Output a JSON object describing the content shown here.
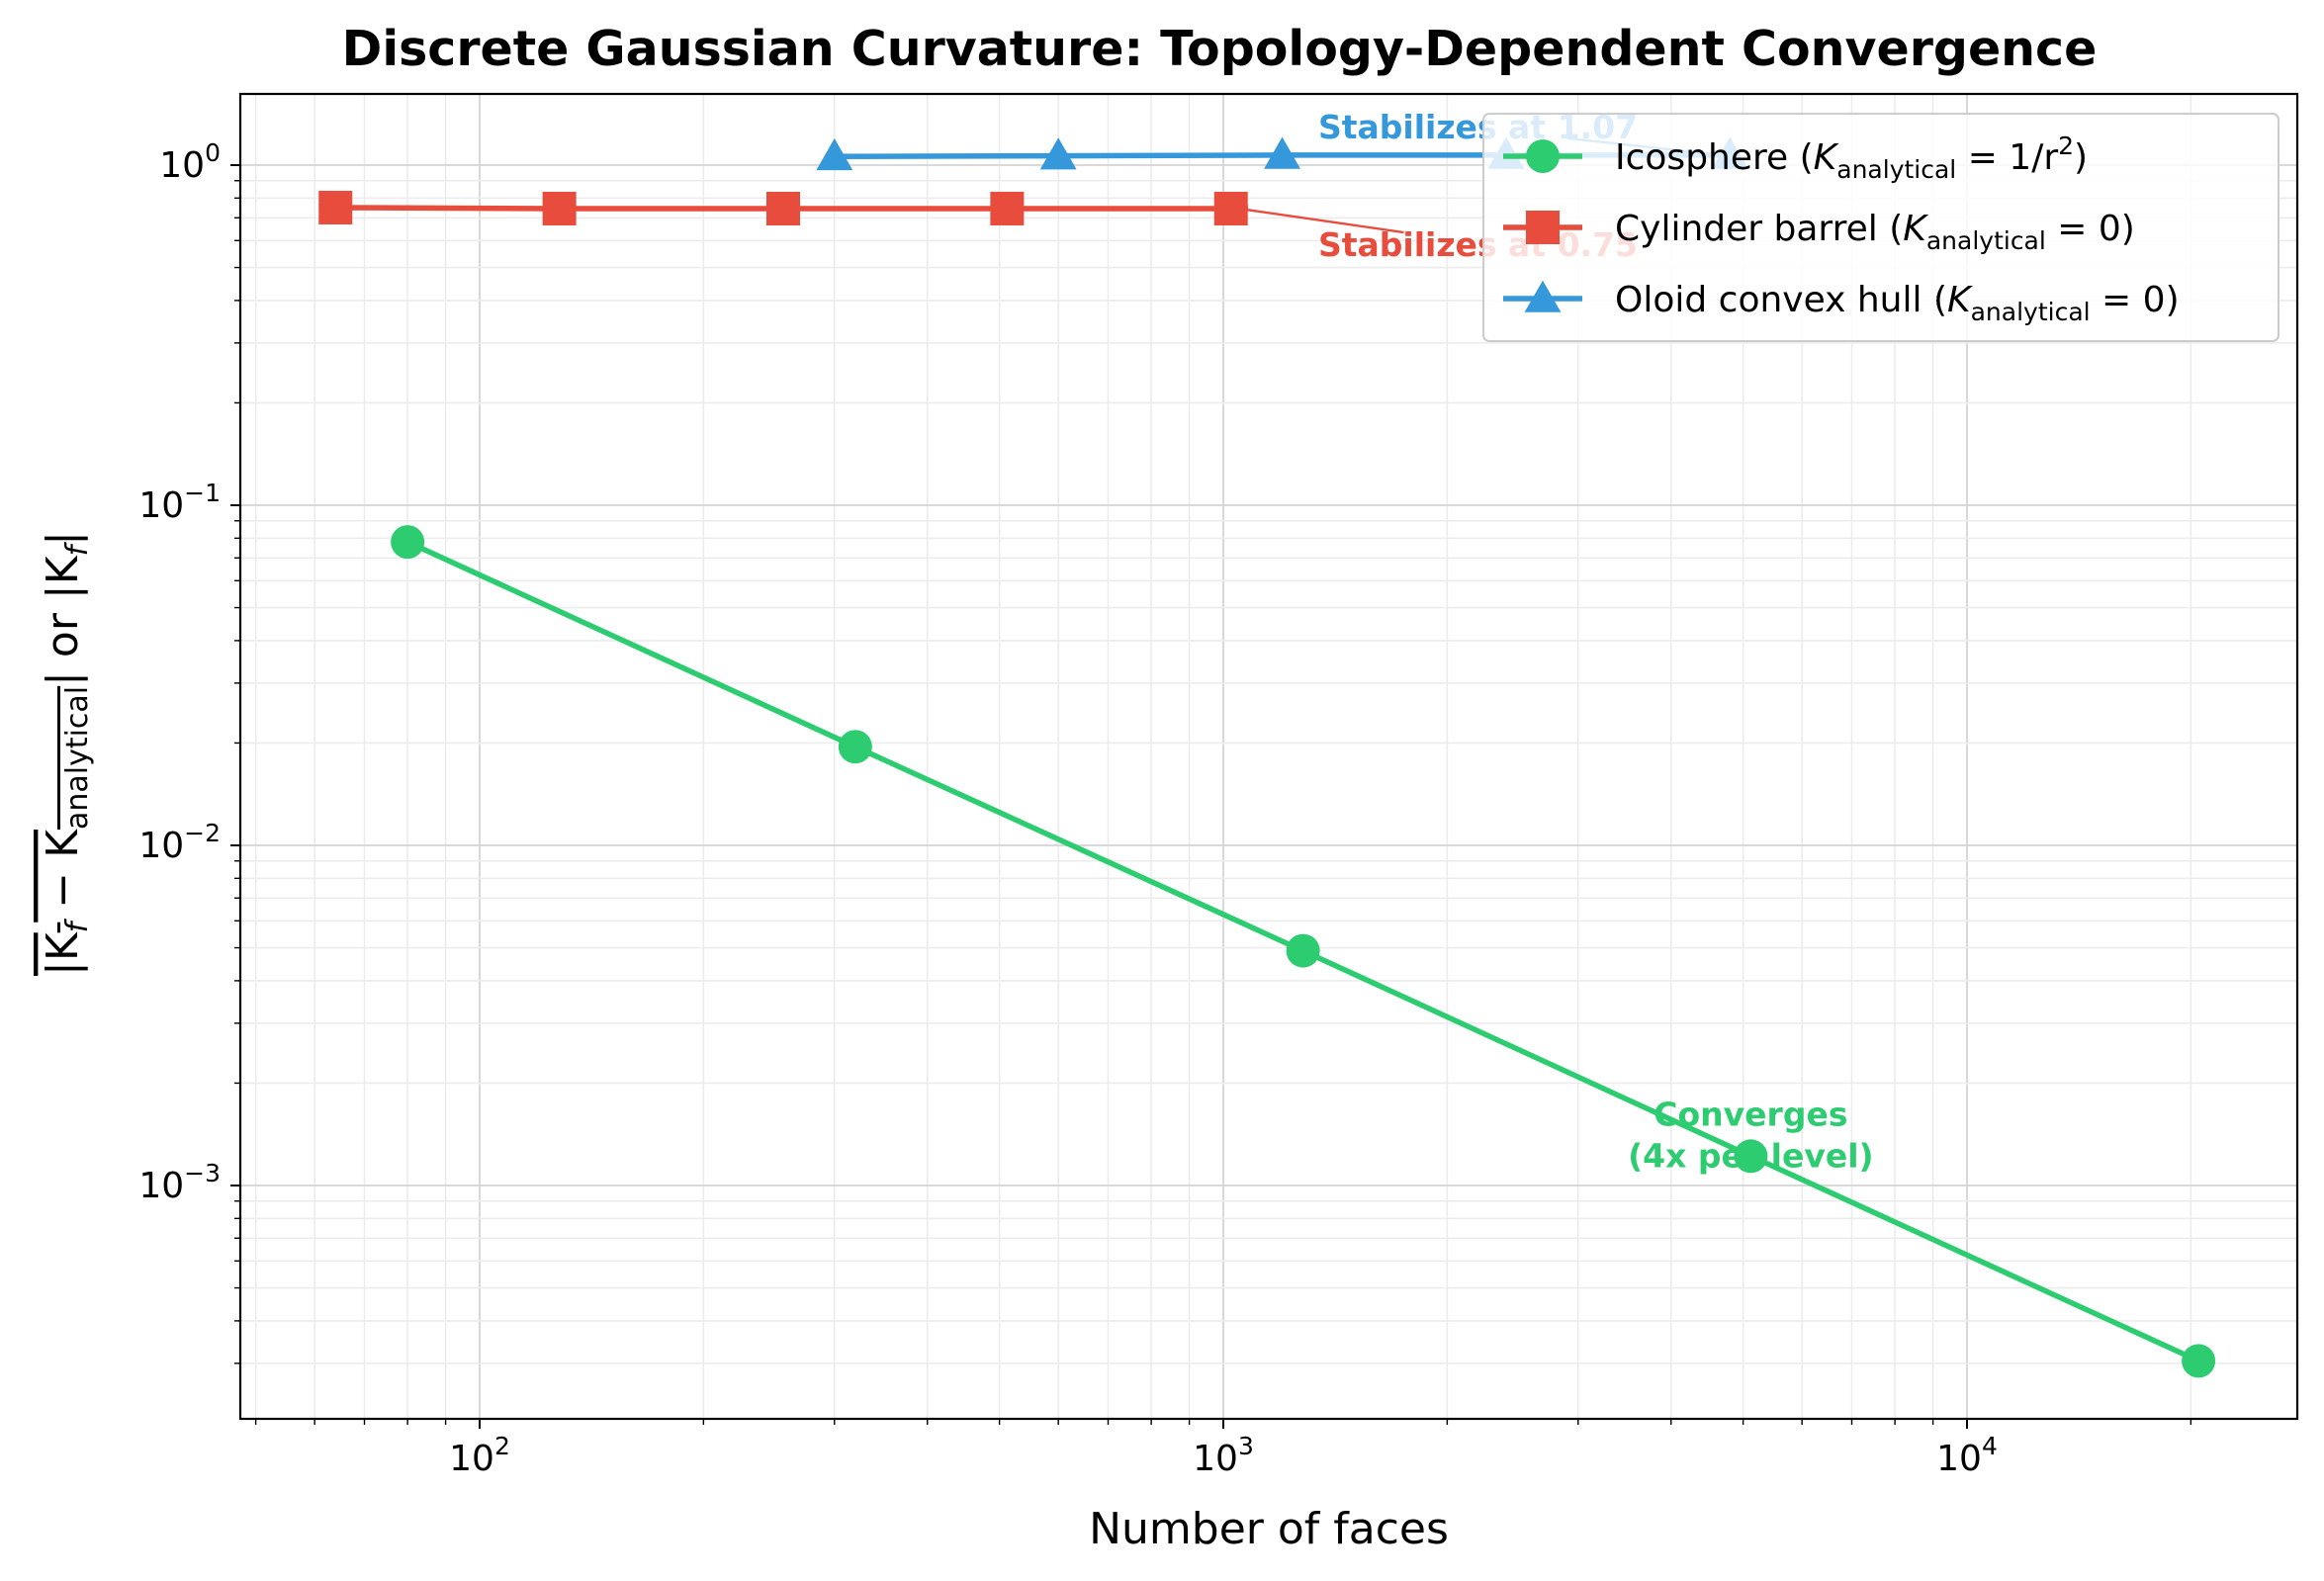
{
  "chart_data": {
    "type": "line",
    "title": "Discrete Gaussian Curvature: Topology-Dependent Convergence",
    "xlabel": "Number of faces",
    "ylabel_parts": [
      "|K",
      "f",
      " − K",
      "analytical",
      "| or |K",
      "f",
      "|"
    ],
    "x_scale": "log",
    "y_scale": "log",
    "xlim": [
      50,
      30000
    ],
    "ylim": [
      0.0002,
      1.6
    ],
    "x_ticks": [
      {
        "value": 100,
        "base": "10",
        "exp": "2"
      },
      {
        "value": 1000,
        "base": "10",
        "exp": "3"
      },
      {
        "value": 10000,
        "base": "10",
        "exp": "4"
      }
    ],
    "y_ticks": [
      {
        "value": 0.001,
        "base": "10",
        "exp": "−3"
      },
      {
        "value": 0.01,
        "base": "10",
        "exp": "−2"
      },
      {
        "value": 0.1,
        "base": "10",
        "exp": "−1"
      },
      {
        "value": 1,
        "base": "10",
        "exp": "0"
      }
    ],
    "grid": true,
    "legend_position": "top-right",
    "series": [
      {
        "name": "Icosphere",
        "legend_prefix": "Icosphere (",
        "legend_sub": "analytical",
        "legend_rhs": " = 1/r",
        "legend_sup": "2",
        "legend_suffix": ")",
        "color": "#2ecc71",
        "marker": "circle",
        "x": [
          80,
          320,
          1280,
          5120,
          20480
        ],
        "y": [
          0.078,
          0.0195,
          0.0049,
          0.00122,
          0.000305
        ]
      },
      {
        "name": "Cylinder barrel",
        "legend_prefix": "Cylinder barrel (",
        "legend_sub": "analytical",
        "legend_rhs": " = 0",
        "legend_sup": "",
        "legend_suffix": ")",
        "color": "#e74c3c",
        "marker": "square",
        "x": [
          64,
          128,
          256,
          512,
          1024
        ],
        "y": [
          0.75,
          0.745,
          0.745,
          0.745,
          0.745
        ]
      },
      {
        "name": "Oloid convex hull",
        "legend_prefix": "Oloid convex hull (",
        "legend_sub": "analytical",
        "legend_rhs": " = 0",
        "legend_sup": "",
        "legend_suffix": ")",
        "color": "#3498db",
        "marker": "triangle",
        "x": [
          300,
          600,
          1200,
          2400,
          4800
        ],
        "y": [
          1.06,
          1.065,
          1.07,
          1.07,
          1.07
        ]
      }
    ],
    "annotations": [
      {
        "lines": [
          "Stabilizes at 1.07"
        ],
        "color": "#3498db",
        "text_x": 2200,
        "text_y": 1.2,
        "arrow_to_x": 4800,
        "arrow_to_y": 1.07
      },
      {
        "lines": [
          "Stabilizes at 0.75"
        ],
        "color": "#e74c3c",
        "text_x": 2200,
        "text_y": 0.54,
        "arrow_to_x": 1024,
        "arrow_to_y": 0.745
      },
      {
        "lines": [
          "Converges",
          "(4x per level)"
        ],
        "color": "#2ecc71",
        "text_x": 5120,
        "text_y": 0.0015,
        "arrow_to_x": null,
        "arrow_to_y": null
      }
    ]
  }
}
